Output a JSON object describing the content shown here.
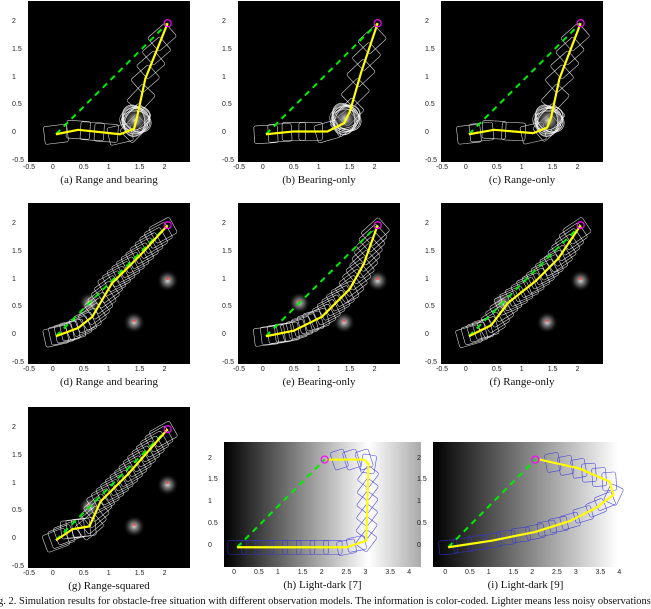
{
  "figure_caption": "g. 2.  Simulation results for obstacle-free situation with different observation models. The information is color-coded. Lighter means less noisy observations",
  "colors": {
    "trajectory": "#ffff00",
    "nominal": "#00ee00",
    "goal": "#ff00ff",
    "landmark": "#ff3333",
    "belief_dark": "#ffffff",
    "belief_light": "#3333dd"
  },
  "chart_data": [
    {
      "id": "a",
      "type": "line",
      "caption": "(a) Range and bearing",
      "background": "black",
      "xlim": [
        -0.5,
        2.4
      ],
      "ylim": [
        -0.5,
        2.4
      ],
      "xticks": [
        "-0.5",
        "0",
        "0.5",
        "1",
        "1.5",
        "2"
      ],
      "yticks": [
        "-0.5",
        "0",
        "0.5",
        "1",
        "1.5",
        "2"
      ],
      "start": [
        0,
        0
      ],
      "goal": [
        2,
        2
      ],
      "trajectory": [
        [
          0,
          0
        ],
        [
          0.4,
          0.08
        ],
        [
          1.15,
          0
        ],
        [
          1.4,
          0.1
        ],
        [
          1.45,
          0.3
        ],
        [
          1.6,
          1.0
        ],
        [
          2,
          2
        ]
      ],
      "cluster": [
        1.42,
        0.25
      ],
      "landmarks": []
    },
    {
      "id": "b",
      "type": "line",
      "caption": "(b) Bearing-only",
      "background": "black",
      "xlim": [
        -0.5,
        2.4
      ],
      "ylim": [
        -0.5,
        2.4
      ],
      "xticks": [
        "-0.5",
        "0",
        "0.5",
        "1",
        "1.5",
        "2"
      ],
      "yticks": [
        "-0.5",
        "0",
        "0.5",
        "1",
        "1.5",
        "2"
      ],
      "start": [
        0,
        0
      ],
      "goal": [
        2,
        2
      ],
      "trajectory": [
        [
          0,
          0
        ],
        [
          0.5,
          0.05
        ],
        [
          1.1,
          0.05
        ],
        [
          1.4,
          0.2
        ],
        [
          1.5,
          0.4
        ],
        [
          1.7,
          1.1
        ],
        [
          2,
          2
        ]
      ],
      "cluster": [
        1.42,
        0.28
      ],
      "landmarks": []
    },
    {
      "id": "c",
      "type": "line",
      "caption": "(c) Range-only",
      "background": "black",
      "xlim": [
        -0.5,
        2.4
      ],
      "ylim": [
        -0.5,
        2.4
      ],
      "xticks": [
        "-0.5",
        "0",
        "0.5",
        "1",
        "1.5",
        "2"
      ],
      "yticks": [
        "-0.5",
        "0",
        "0.5",
        "1",
        "1.5",
        "2"
      ],
      "start": [
        0,
        0
      ],
      "goal": [
        2,
        2
      ],
      "trajectory": [
        [
          0,
          0
        ],
        [
          0.45,
          0.08
        ],
        [
          1.15,
          0.02
        ],
        [
          1.4,
          0.12
        ],
        [
          1.47,
          0.3
        ],
        [
          1.62,
          1.0
        ],
        [
          2,
          2
        ]
      ],
      "cluster": [
        1.42,
        0.25
      ],
      "landmarks": []
    },
    {
      "id": "d",
      "type": "line",
      "caption": "(d) Range and bearing",
      "background": "black",
      "xlim": [
        -0.5,
        2.4
      ],
      "ylim": [
        -0.5,
        2.4
      ],
      "xticks": [
        "-0.5",
        "0",
        "0.5",
        "1",
        "1.5",
        "2"
      ],
      "yticks": [
        "-0.5",
        "0",
        "0.5",
        "1",
        "1.5",
        "2"
      ],
      "start": [
        0,
        0
      ],
      "goal": [
        2,
        2
      ],
      "trajectory": [
        [
          0,
          0
        ],
        [
          0.4,
          0.15
        ],
        [
          0.65,
          0.35
        ],
        [
          1.0,
          0.95
        ],
        [
          1.5,
          1.45
        ],
        [
          2,
          2
        ]
      ],
      "landmarks": [
        [
          0.6,
          0.6
        ],
        [
          2,
          1
        ],
        [
          1.4,
          0.25
        ]
      ]
    },
    {
      "id": "e",
      "type": "line",
      "caption": "(e) Bearing-only",
      "background": "black",
      "xlim": [
        -0.5,
        2.4
      ],
      "ylim": [
        -0.5,
        2.4
      ],
      "xticks": [
        "-0.5",
        "0",
        "0.5",
        "1",
        "1.5",
        "2"
      ],
      "yticks": [
        "-0.5",
        "0",
        "0.5",
        "1",
        "1.5",
        "2"
      ],
      "start": [
        0,
        0
      ],
      "goal": [
        2,
        2
      ],
      "trajectory": [
        [
          0,
          0
        ],
        [
          0.5,
          0.1
        ],
        [
          1.0,
          0.35
        ],
        [
          1.5,
          0.85
        ],
        [
          1.75,
          1.3
        ],
        [
          2,
          2
        ]
      ],
      "landmarks": [
        [
          0.6,
          0.6
        ],
        [
          2,
          1
        ],
        [
          1.4,
          0.25
        ]
      ]
    },
    {
      "id": "f",
      "type": "line",
      "caption": "(f) Range-only",
      "background": "black",
      "xlim": [
        -0.5,
        2.4
      ],
      "ylim": [
        -0.5,
        2.4
      ],
      "xticks": [
        "-0.5",
        "0",
        "0.5",
        "1",
        "1.5",
        "2"
      ],
      "yticks": [
        "-0.5",
        "0",
        "0.5",
        "1",
        "1.5",
        "2"
      ],
      "start": [
        0,
        0
      ],
      "goal": [
        2,
        2
      ],
      "trajectory": [
        [
          0,
          0
        ],
        [
          0.4,
          0.2
        ],
        [
          0.7,
          0.6
        ],
        [
          1.2,
          1.0
        ],
        [
          1.6,
          1.4
        ],
        [
          2,
          2
        ]
      ],
      "landmarks": [
        [
          0.6,
          0.6
        ],
        [
          2,
          1
        ],
        [
          1.4,
          0.25
        ]
      ]
    },
    {
      "id": "g",
      "type": "line",
      "caption": "(g) Range-squared",
      "background": "black",
      "xlim": [
        -0.5,
        2.4
      ],
      "ylim": [
        -0.5,
        2.4
      ],
      "xticks": [
        "-0.5",
        "0",
        "0.5",
        "1",
        "1.5",
        "2"
      ],
      "yticks": [
        "-0.5",
        "0",
        "0.5",
        "1",
        "1.5",
        "2"
      ],
      "start": [
        0,
        0
      ],
      "goal": [
        2,
        2
      ],
      "trajectory": [
        [
          0,
          0
        ],
        [
          0.3,
          0.2
        ],
        [
          0.6,
          0.25
        ],
        [
          0.8,
          0.7
        ],
        [
          1.3,
          1.2
        ],
        [
          2,
          2
        ]
      ],
      "landmarks": [
        [
          0.6,
          0.6
        ],
        [
          2,
          1
        ],
        [
          1.4,
          0.25
        ]
      ]
    },
    {
      "id": "h",
      "type": "line",
      "caption": "(h) Light-dark [7]",
      "background": "light-dark",
      "light_peak_x": 3,
      "xlim": [
        -0.3,
        4.2
      ],
      "ylim": [
        -0.45,
        2.4
      ],
      "xticks": [
        "0",
        "0.5",
        "1",
        "1.5",
        "2",
        "2.5",
        "3",
        "3.5",
        "4"
      ],
      "yticks": [
        "0",
        "0.5",
        "1",
        "1.5",
        "2"
      ],
      "start": [
        0,
        0
      ],
      "goal": [
        2,
        2
      ],
      "trajectory": [
        [
          0,
          0
        ],
        [
          2.5,
          0
        ],
        [
          2.95,
          0.15
        ],
        [
          3.0,
          1.9
        ],
        [
          2.9,
          2.0
        ],
        [
          2.05,
          2.0
        ]
      ],
      "landmarks": []
    },
    {
      "id": "i",
      "type": "line",
      "caption": "(i) Light-dark [9]",
      "background": "light-dark",
      "light_peak_x": 4,
      "xlim": [
        -0.35,
        3.9
      ],
      "ylim": [
        -0.45,
        2.4
      ],
      "xticks": [
        "0",
        "0.5",
        "1",
        "1.5",
        "2",
        "2.5",
        "3",
        "3.5",
        "4"
      ],
      "yticks": [
        "0",
        "0.5",
        "1",
        "1.5",
        "2"
      ],
      "start": [
        0,
        0
      ],
      "goal": [
        2,
        2
      ],
      "trajectory": [
        [
          0,
          0
        ],
        [
          1,
          0.15
        ],
        [
          2,
          0.35
        ],
        [
          2.8,
          0.6
        ],
        [
          3.4,
          0.9
        ],
        [
          3.8,
          1.2
        ],
        [
          3.7,
          1.5
        ],
        [
          3.0,
          1.8
        ],
        [
          2.1,
          2.0
        ]
      ],
      "landmarks": []
    }
  ]
}
